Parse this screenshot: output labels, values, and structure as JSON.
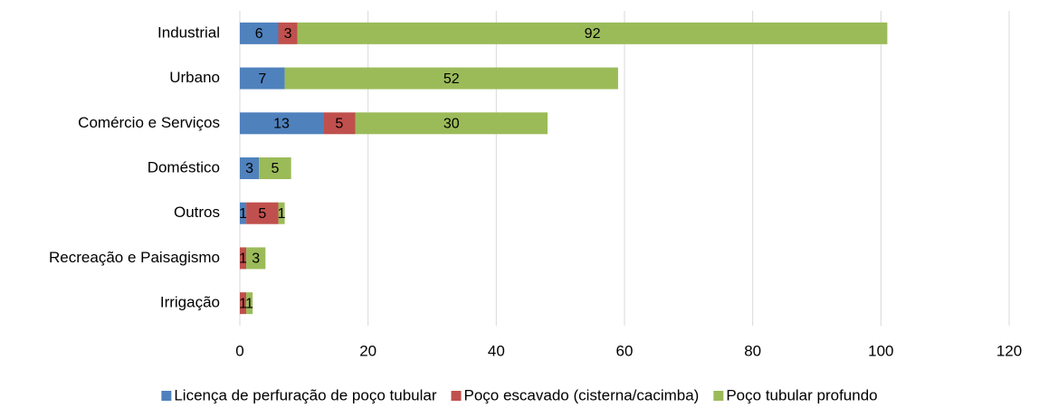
{
  "chart_data": {
    "type": "stacked-bar-horizontal",
    "categories": [
      "Industrial",
      "Urbano",
      "Comércio e Serviços",
      "Doméstico",
      "Outros",
      "Recreação e Paisagismo",
      "Irrigação"
    ],
    "series": [
      {
        "name": "Licença de perfuração de poço tubular",
        "color": "#4f81bd",
        "values": [
          6,
          7,
          13,
          3,
          1,
          null,
          null
        ]
      },
      {
        "name": "Poço escavado (cisterna/cacimba)",
        "color": "#c0504d",
        "values": [
          3,
          null,
          5,
          null,
          5,
          1,
          1
        ]
      },
      {
        "name": "Poço tubular profundo",
        "color": "#9bbb59",
        "values": [
          92,
          52,
          30,
          5,
          1,
          3,
          1
        ]
      }
    ],
    "xlim": [
      0,
      120
    ],
    "xticks": [
      0,
      20,
      40,
      60,
      80,
      100,
      120
    ],
    "grid": true,
    "legend": "bottom"
  }
}
